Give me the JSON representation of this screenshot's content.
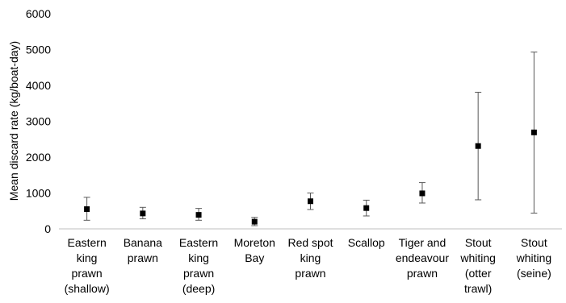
{
  "chart_data": {
    "type": "scatter",
    "title": "",
    "xlabel": "",
    "ylabel": "Mean discard rate (kg/boat-day)",
    "ylim": [
      0,
      6000
    ],
    "yticks": [
      "0",
      "1000",
      "2000",
      "3000",
      "4000",
      "5000",
      "6000"
    ],
    "grid": false,
    "legend": "none",
    "marker_color": "#000000",
    "errorbar_color": "#595959",
    "categories": [
      [
        "Eastern",
        "king",
        "prawn",
        "(shallow)"
      ],
      [
        "Banana",
        "prawn"
      ],
      [
        "Eastern",
        "king",
        "prawn",
        "(deep)"
      ],
      [
        "Moreton",
        "Bay"
      ],
      [
        "Red spot",
        "king",
        "prawn"
      ],
      [
        "Scallop"
      ],
      [
        "Tiger and",
        "endeavour",
        "prawn"
      ],
      [
        "Stout",
        "whiting",
        "(otter",
        "trawl)"
      ],
      [
        "Stout",
        "whiting",
        "(seine)"
      ]
    ],
    "series": [
      {
        "values": [
          550,
          430,
          390,
          200,
          770,
          580,
          990,
          2310,
          2690
        ],
        "error_low": [
          240,
          280,
          240,
          90,
          540,
          360,
          720,
          810,
          440
        ],
        "error_high": [
          880,
          600,
          570,
          320,
          1000,
          800,
          1290,
          3810,
          4930
        ]
      }
    ]
  }
}
